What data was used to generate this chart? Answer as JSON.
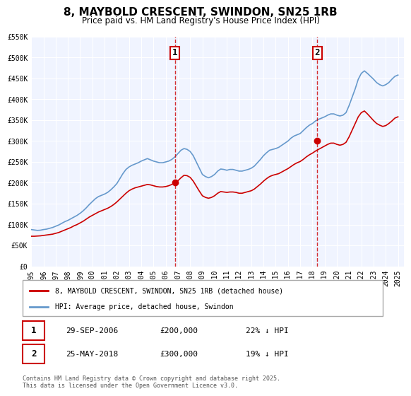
{
  "title": "8, MAYBOLD CRESCENT, SWINDON, SN25 1RB",
  "subtitle": "Price paid vs. HM Land Registry's House Price Index (HPI)",
  "xlabel": "",
  "ylabel": "",
  "background_color": "#ffffff",
  "plot_bg_color": "#f0f4ff",
  "grid_color": "#ffffff",
  "hpi_color": "#6699cc",
  "price_color": "#cc0000",
  "ylim": [
    0,
    550000
  ],
  "yticks": [
    0,
    50000,
    100000,
    150000,
    200000,
    250000,
    300000,
    350000,
    400000,
    450000,
    500000,
    550000
  ],
  "ytick_labels": [
    "£0",
    "£50K",
    "£100K",
    "£150K",
    "£200K",
    "£250K",
    "£300K",
    "£350K",
    "£400K",
    "£450K",
    "£500K",
    "£550K"
  ],
  "xlim_start": 1995.0,
  "xlim_end": 2025.5,
  "xticks": [
    1995,
    1996,
    1997,
    1998,
    1999,
    2000,
    2001,
    2002,
    2003,
    2004,
    2005,
    2006,
    2007,
    2008,
    2009,
    2010,
    2011,
    2012,
    2013,
    2014,
    2015,
    2016,
    2017,
    2018,
    2019,
    2020,
    2021,
    2022,
    2023,
    2024,
    2025
  ],
  "sale1_x": 2006.75,
  "sale1_y": 200000,
  "sale1_label": "1",
  "sale1_date": "29-SEP-2006",
  "sale1_price": "£200,000",
  "sale1_hpi": "22% ↓ HPI",
  "sale2_x": 2018.4,
  "sale2_y": 300000,
  "sale2_label": "2",
  "sale2_date": "25-MAY-2018",
  "sale2_price": "£300,000",
  "sale2_hpi": "19% ↓ HPI",
  "legend_line1": "8, MAYBOLD CRESCENT, SWINDON, SN25 1RB (detached house)",
  "legend_line2": "HPI: Average price, detached house, Swindon",
  "footnote": "Contains HM Land Registry data © Crown copyright and database right 2025.\nThis data is licensed under the Open Government Licence v3.0.",
  "hpi_data_x": [
    1995.0,
    1995.25,
    1995.5,
    1995.75,
    1996.0,
    1996.25,
    1996.5,
    1996.75,
    1997.0,
    1997.25,
    1997.5,
    1997.75,
    1998.0,
    1998.25,
    1998.5,
    1998.75,
    1999.0,
    1999.25,
    1999.5,
    1999.75,
    2000.0,
    2000.25,
    2000.5,
    2000.75,
    2001.0,
    2001.25,
    2001.5,
    2001.75,
    2002.0,
    2002.25,
    2002.5,
    2002.75,
    2003.0,
    2003.25,
    2003.5,
    2003.75,
    2004.0,
    2004.25,
    2004.5,
    2004.75,
    2005.0,
    2005.25,
    2005.5,
    2005.75,
    2006.0,
    2006.25,
    2006.5,
    2006.75,
    2007.0,
    2007.25,
    2007.5,
    2007.75,
    2008.0,
    2008.25,
    2008.5,
    2008.75,
    2009.0,
    2009.25,
    2009.5,
    2009.75,
    2010.0,
    2010.25,
    2010.5,
    2010.75,
    2011.0,
    2011.25,
    2011.5,
    2011.75,
    2012.0,
    2012.25,
    2012.5,
    2012.75,
    2013.0,
    2013.25,
    2013.5,
    2013.75,
    2014.0,
    2014.25,
    2014.5,
    2014.75,
    2015.0,
    2015.25,
    2015.5,
    2015.75,
    2016.0,
    2016.25,
    2016.5,
    2016.75,
    2017.0,
    2017.25,
    2017.5,
    2017.75,
    2018.0,
    2018.25,
    2018.5,
    2018.75,
    2019.0,
    2019.25,
    2019.5,
    2019.75,
    2020.0,
    2020.25,
    2020.5,
    2020.75,
    2021.0,
    2021.25,
    2021.5,
    2021.75,
    2022.0,
    2022.25,
    2022.5,
    2022.75,
    2023.0,
    2023.25,
    2023.5,
    2023.75,
    2024.0,
    2024.25,
    2024.5,
    2024.75,
    2025.0
  ],
  "hpi_data_y": [
    88000,
    87000,
    86000,
    86500,
    88000,
    89000,
    91000,
    93000,
    96000,
    99000,
    103000,
    107000,
    110000,
    114000,
    118000,
    122000,
    127000,
    133000,
    140000,
    148000,
    155000,
    162000,
    167000,
    170000,
    173000,
    177000,
    183000,
    190000,
    198000,
    210000,
    222000,
    232000,
    238000,
    242000,
    245000,
    248000,
    252000,
    255000,
    258000,
    255000,
    252000,
    250000,
    248000,
    248000,
    250000,
    252000,
    256000,
    262000,
    270000,
    278000,
    282000,
    280000,
    275000,
    265000,
    250000,
    235000,
    220000,
    215000,
    212000,
    215000,
    220000,
    228000,
    233000,
    232000,
    230000,
    232000,
    232000,
    230000,
    228000,
    228000,
    230000,
    232000,
    235000,
    240000,
    248000,
    256000,
    265000,
    272000,
    278000,
    280000,
    282000,
    285000,
    290000,
    295000,
    300000,
    307000,
    312000,
    315000,
    318000,
    325000,
    332000,
    338000,
    342000,
    348000,
    352000,
    355000,
    358000,
    362000,
    365000,
    365000,
    362000,
    360000,
    362000,
    368000,
    385000,
    405000,
    425000,
    448000,
    462000,
    468000,
    462000,
    455000,
    448000,
    440000,
    435000,
    432000,
    435000,
    440000,
    448000,
    455000,
    458000
  ],
  "price_data_x": [
    1995.0,
    1995.25,
    1995.5,
    1995.75,
    1996.0,
    1996.25,
    1996.5,
    1996.75,
    1997.0,
    1997.25,
    1997.5,
    1997.75,
    1998.0,
    1998.25,
    1998.5,
    1998.75,
    1999.0,
    1999.25,
    1999.5,
    1999.75,
    2000.0,
    2000.25,
    2000.5,
    2000.75,
    2001.0,
    2001.25,
    2001.5,
    2001.75,
    2002.0,
    2002.25,
    2002.5,
    2002.75,
    2003.0,
    2003.25,
    2003.5,
    2003.75,
    2004.0,
    2004.25,
    2004.5,
    2004.75,
    2005.0,
    2005.25,
    2005.5,
    2005.75,
    2006.0,
    2006.25,
    2006.5,
    2006.75,
    2007.0,
    2007.25,
    2007.5,
    2007.75,
    2008.0,
    2008.25,
    2008.5,
    2008.75,
    2009.0,
    2009.25,
    2009.5,
    2009.75,
    2010.0,
    2010.25,
    2010.5,
    2010.75,
    2011.0,
    2011.25,
    2011.5,
    2011.75,
    2012.0,
    2012.25,
    2012.5,
    2012.75,
    2013.0,
    2013.25,
    2013.5,
    2013.75,
    2014.0,
    2014.25,
    2014.5,
    2014.75,
    2015.0,
    2015.25,
    2015.5,
    2015.75,
    2016.0,
    2016.25,
    2016.5,
    2016.75,
    2017.0,
    2017.25,
    2017.5,
    2017.75,
    2018.0,
    2018.25,
    2018.5,
    2018.75,
    2019.0,
    2019.25,
    2019.5,
    2019.75,
    2020.0,
    2020.25,
    2020.5,
    2020.75,
    2021.0,
    2021.25,
    2021.5,
    2021.75,
    2022.0,
    2022.25,
    2022.5,
    2022.75,
    2023.0,
    2023.25,
    2023.5,
    2023.75,
    2024.0,
    2024.25,
    2024.5,
    2024.75,
    2025.0
  ],
  "price_data_y": [
    72000,
    72000,
    72500,
    73000,
    74000,
    75000,
    76000,
    77000,
    79000,
    81000,
    84000,
    87000,
    90000,
    93000,
    97000,
    100000,
    104000,
    108000,
    113000,
    118000,
    122000,
    126000,
    130000,
    133000,
    136000,
    139000,
    143000,
    148000,
    154000,
    161000,
    168000,
    175000,
    181000,
    185000,
    188000,
    190000,
    192000,
    194000,
    196000,
    195000,
    193000,
    191000,
    190000,
    190000,
    191000,
    193000,
    196000,
    200000,
    205000,
    212000,
    218000,
    217000,
    213000,
    204000,
    192000,
    180000,
    169000,
    165000,
    163000,
    165000,
    169000,
    175000,
    179000,
    178000,
    177000,
    178000,
    178000,
    177000,
    175000,
    175000,
    177000,
    179000,
    181000,
    185000,
    191000,
    197000,
    204000,
    210000,
    215000,
    218000,
    220000,
    222000,
    226000,
    230000,
    234000,
    239000,
    244000,
    248000,
    251000,
    256000,
    262000,
    267000,
    271000,
    276000,
    280000,
    284000,
    288000,
    292000,
    295000,
    295000,
    292000,
    290000,
    292000,
    297000,
    310000,
    326000,
    342000,
    358000,
    368000,
    372000,
    365000,
    357000,
    349000,
    342000,
    338000,
    335000,
    337000,
    342000,
    348000,
    355000,
    358000
  ]
}
